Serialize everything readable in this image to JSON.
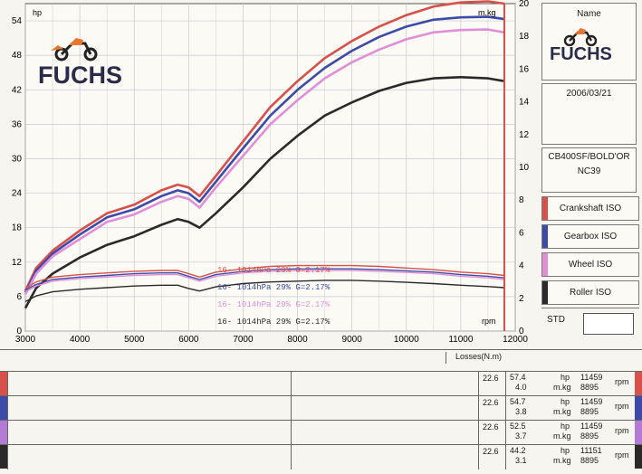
{
  "header": {
    "name_label": "Name",
    "brand": "FUCHS",
    "date": "2006/03/21",
    "model_line1": "CB400SF/BOLD'OR",
    "model_line2": "NC39",
    "std_label": "STD",
    "losses_label": "Losses(N.m)"
  },
  "colors": {
    "crank": "#d8504a",
    "gearbox": "#3d4aa8",
    "wheel": "#e08fd6",
    "roller": "#2a2a2a",
    "grid": "#c9c7cf"
  },
  "legend": [
    {
      "label": "Crankshaft ISO",
      "color": "#d8504a"
    },
    {
      "label": "Gearbox ISO",
      "color": "#3d4aa8"
    },
    {
      "label": "Wheel ISO",
      "color": "#e08fd6"
    },
    {
      "label": "Roller ISO",
      "color": "#2a2a2a"
    }
  ],
  "conditions": [
    {
      "text": "16-   1014hPa   29%    G=2.17%",
      "color": "#d8504a"
    },
    {
      "text": "16-   1014hPa   29%    G=2.17%",
      "color": "#3d4aa8"
    },
    {
      "text": "16-   1014hPa   29%    G=2.17%",
      "color": "#e08fd6"
    },
    {
      "text": "16-   1014hPa   29%    G=2.17%",
      "color": "#2a2a2a"
    }
  ],
  "results": [
    {
      "loss": "22.6",
      "hp": "57.4",
      "hp_unit": "hp",
      "hp_rpm": "11459",
      "torque": "4.0",
      "torque_unit": "m.kg",
      "torque_rpm": "8895",
      "rpm_label": "rpm",
      "color": "#d8504a"
    },
    {
      "loss": "22.6",
      "hp": "54.7",
      "hp_unit": "hp",
      "hp_rpm": "11459",
      "torque": "3.8",
      "torque_unit": "m.kg",
      "torque_rpm": "8895",
      "rpm_label": "rpm",
      "color": "#3d4aa8"
    },
    {
      "loss": "22.6",
      "hp": "52.5",
      "hp_unit": "hp",
      "hp_rpm": "11459",
      "torque": "3.7",
      "torque_unit": "m.kg",
      "torque_rpm": "8895",
      "rpm_label": "rpm",
      "color": "#b37ad6"
    },
    {
      "loss": "22.6",
      "hp": "44.2",
      "hp_unit": "hp",
      "hp_rpm": "11151",
      "torque": "3.1",
      "torque_unit": "m.kg",
      "torque_rpm": "8895",
      "rpm_label": "rpm",
      "color": "#2a2a2a"
    }
  ],
  "chart_data": {
    "type": "line",
    "title": "",
    "xlabel": "rpm",
    "ylabel_left": "hp",
    "ylabel_right": "m.kg",
    "xlim": [
      3000,
      12000
    ],
    "ylim_left": [
      0,
      57
    ],
    "ylim_right": [
      0,
      20
    ],
    "x_ticks": [
      3000,
      4000,
      5000,
      6000,
      7000,
      8000,
      9000,
      10000,
      11000,
      12000
    ],
    "y_ticks_left": [
      0,
      6,
      12,
      18,
      24,
      30,
      36,
      42,
      48,
      54
    ],
    "y_ticks_right": [
      0,
      2,
      4,
      6,
      8,
      10,
      12,
      14,
      16,
      18,
      20
    ],
    "grid": true,
    "x": [
      3000,
      3200,
      3500,
      4000,
      4500,
      5000,
      5500,
      5800,
      6000,
      6200,
      6500,
      7000,
      7500,
      8000,
      8500,
      9000,
      9500,
      10000,
      10500,
      11000,
      11500,
      11800
    ],
    "series": [
      {
        "name": "Crankshaft ISO",
        "axis": "hp",
        "color": "#d8504a",
        "values": [
          7,
          11,
          14,
          17.5,
          20.5,
          22,
          24.5,
          25.5,
          25,
          23.5,
          27,
          33,
          39,
          43.5,
          47.5,
          50.5,
          53,
          55,
          56.5,
          57.2,
          57.4,
          57
        ]
      },
      {
        "name": "Gearbox ISO",
        "axis": "hp",
        "color": "#3d4aa8",
        "values": [
          6.7,
          10.5,
          13.5,
          16.8,
          19.8,
          21.2,
          23.5,
          24.5,
          24,
          22.5,
          26,
          31.8,
          37.5,
          42,
          45.8,
          48.8,
          51.2,
          53,
          54.2,
          54.6,
          54.7,
          54.3
        ]
      },
      {
        "name": "Wheel ISO",
        "axis": "hp",
        "color": "#e08fd6",
        "values": [
          6.4,
          10,
          13,
          16,
          19,
          20.3,
          22.5,
          23.5,
          23,
          21.5,
          25,
          30.5,
          36,
          40.2,
          44,
          46.8,
          49,
          50.8,
          52,
          52.4,
          52.5,
          52
        ]
      },
      {
        "name": "Roller ISO",
        "axis": "hp",
        "color": "#2a2a2a",
        "values": [
          4,
          7.5,
          10,
          12.8,
          15,
          16.5,
          18.5,
          19.5,
          19,
          18,
          20.5,
          25,
          30,
          34,
          37.5,
          39.8,
          41.8,
          43.2,
          44,
          44.2,
          44,
          43.5
        ]
      },
      {
        "name": "Crankshaft ISO torque",
        "axis": "m.kg",
        "color": "#d8504a",
        "values": [
          2.6,
          3.0,
          3.3,
          3.45,
          3.55,
          3.65,
          3.7,
          3.7,
          3.5,
          3.3,
          3.6,
          3.8,
          3.95,
          4.0,
          4.0,
          4.0,
          3.95,
          3.85,
          3.75,
          3.6,
          3.5,
          3.4
        ]
      },
      {
        "name": "Gearbox ISO torque",
        "axis": "m.kg",
        "color": "#3d4aa8",
        "values": [
          2.5,
          2.85,
          3.15,
          3.3,
          3.4,
          3.5,
          3.55,
          3.55,
          3.35,
          3.15,
          3.45,
          3.65,
          3.75,
          3.8,
          3.8,
          3.8,
          3.75,
          3.68,
          3.6,
          3.45,
          3.35,
          3.25
        ]
      },
      {
        "name": "Wheel ISO torque",
        "axis": "m.kg",
        "color": "#e08fd6",
        "values": [
          2.4,
          2.75,
          3.05,
          3.2,
          3.3,
          3.4,
          3.45,
          3.45,
          3.25,
          3.05,
          3.35,
          3.55,
          3.65,
          3.7,
          3.7,
          3.7,
          3.65,
          3.58,
          3.5,
          3.35,
          3.25,
          3.15
        ]
      },
      {
        "name": "Roller ISO torque",
        "axis": "m.kg",
        "color": "#2a2a2a",
        "values": [
          1.8,
          2.15,
          2.4,
          2.55,
          2.65,
          2.75,
          2.8,
          2.8,
          2.6,
          2.45,
          2.7,
          2.9,
          3.0,
          3.05,
          3.1,
          3.1,
          3.05,
          2.98,
          2.9,
          2.8,
          2.72,
          2.65
        ]
      }
    ]
  }
}
